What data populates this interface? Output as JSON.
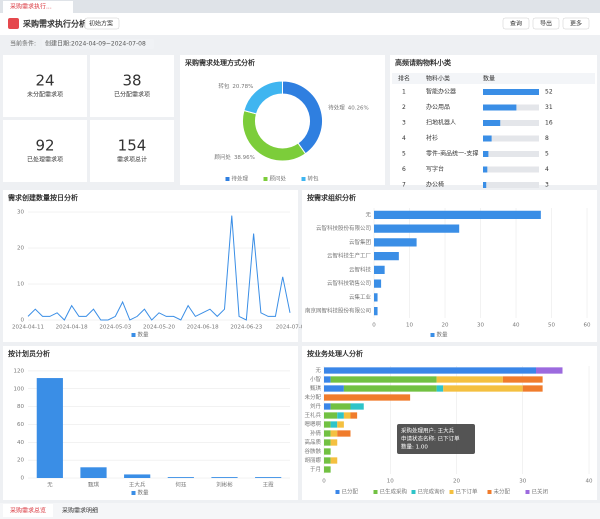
{
  "tab": "采购需求执行...",
  "header": {
    "title": "采购需求执行分析",
    "scheme": "初始方案",
    "buttons": [
      "查询",
      "导出",
      "更多"
    ]
  },
  "filter": {
    "label": "当前条件:",
    "tag": "创建日期:2024-04-09~2024-07-08"
  },
  "kpis": [
    {
      "value": 24,
      "label": "未分配需求项"
    },
    {
      "value": 38,
      "label": "已分配需求项"
    },
    {
      "value": 92,
      "label": "已处理需求项"
    },
    {
      "value": 154,
      "label": "需求项总计"
    }
  ],
  "table": {
    "title": "高频请购物料小类",
    "columns": [
      "排名",
      "物料小类",
      "数量"
    ],
    "rows": [
      [
        1,
        "智能办公器",
        52
      ],
      [
        2,
        "办公用品",
        31
      ],
      [
        3,
        "扫地机器人",
        16
      ],
      [
        4,
        "衬衫",
        8
      ],
      [
        5,
        "零件-商品统一-支撑",
        5
      ],
      [
        6,
        "写字台",
        4
      ],
      [
        7,
        "办公椅",
        3
      ]
    ]
  },
  "chart_data": [
    {
      "type": "pie",
      "title": "采购需求处理方式分析",
      "categories": [
        "待处理",
        "顾问处",
        "转包"
      ],
      "values": [
        40.26,
        38.96,
        20.78
      ],
      "value_labels": [
        "40.26%",
        "38.96%",
        "20.78%"
      ],
      "colors": [
        "#2f7fe0",
        "#7ccd3a",
        "#3fb5f0"
      ],
      "legend": "bottom"
    },
    {
      "type": "line",
      "title": "需求创建数量按日分析",
      "categories": [
        "2024-04-11",
        null,
        null,
        null,
        null,
        null,
        "2024-04-18",
        null,
        null,
        null,
        null,
        null,
        "2024-05-03",
        null,
        null,
        null,
        null,
        null,
        "2024-05-20",
        null,
        null,
        null,
        null,
        null,
        "2024-06-18",
        null,
        null,
        null,
        null,
        null,
        "2024-06-23",
        null,
        null,
        null,
        null,
        null,
        "2024-07-0"
      ],
      "series": [
        {
          "name": "数量",
          "color": "#3a8ee6",
          "values": [
            1,
            3,
            1,
            1,
            2,
            0,
            4,
            1,
            1,
            3,
            0,
            0,
            1,
            5,
            0,
            1,
            3,
            0,
            2,
            1,
            1,
            0,
            4,
            1,
            2,
            3,
            1,
            3,
            29,
            1,
            0,
            24,
            2,
            1,
            1,
            12,
            2
          ]
        }
      ],
      "ylim": [
        0,
        30
      ],
      "yticks": [
        0,
        10,
        20,
        30
      ],
      "grid": true
    },
    {
      "type": "hbar",
      "title": "按需求组织分析",
      "categories": [
        "无",
        "云智科技股份有限公司",
        "云智集团",
        "云智科技生产工厂",
        "云智科技",
        "云智科技销售公司",
        "云集工业",
        "南京网智科技股份有限公司"
      ],
      "series": [
        {
          "name": "数量",
          "color": "#3a8ee6",
          "values": [
            47,
            24,
            12,
            7,
            3,
            2,
            1,
            1
          ]
        }
      ],
      "xlim": [
        0,
        60
      ],
      "xticks": [
        0,
        10,
        20,
        30,
        40,
        50,
        60
      ],
      "grid": true
    },
    {
      "type": "bar",
      "title": "按计划员分析",
      "categories": [
        "无",
        "甄琪",
        "王大兵",
        "何珏",
        "刘彬彬",
        "王霞"
      ],
      "series": [
        {
          "name": "数量",
          "color": "#3a8ee6",
          "values": [
            112,
            12,
            4,
            1,
            1,
            1
          ]
        }
      ],
      "ylim": [
        0,
        130
      ],
      "yticks": [
        0,
        20,
        40,
        60,
        80,
        100,
        120
      ],
      "grid": true
    },
    {
      "type": "stacked-hbar",
      "title": "按业务处理人分析",
      "categories": [
        "无",
        "小智",
        "甄琪",
        "未分配",
        "刘丹",
        "王礼兵",
        "嗯嗯啊",
        "孙倩",
        "高品质",
        "谷骸骸",
        "胡丽娜",
        "于月"
      ],
      "series": [
        {
          "name": "已分配",
          "color": "#3a86e8",
          "values": [
            32,
            1,
            3,
            0,
            1,
            0,
            0,
            0,
            0,
            0,
            0,
            0
          ]
        },
        {
          "name": "已生成采购",
          "color": "#72c142",
          "values": [
            0,
            16,
            14,
            0,
            3,
            2,
            1,
            1,
            1,
            1,
            1,
            1
          ]
        },
        {
          "name": "已完成询价",
          "color": "#2ec4c9",
          "values": [
            0,
            0,
            1,
            0,
            2,
            1,
            1,
            0,
            0,
            0,
            0,
            0
          ]
        },
        {
          "name": "已下订单",
          "color": "#f4c040",
          "values": [
            0,
            10,
            12,
            0,
            0,
            1,
            1,
            1,
            1,
            0,
            1,
            0
          ]
        },
        {
          "name": "未分配",
          "color": "#f07c2c",
          "values": [
            0,
            6,
            3,
            13,
            0,
            1,
            0,
            2,
            0,
            0,
            0,
            0
          ]
        },
        {
          "name": "已关闭",
          "color": "#9c6ade",
          "values": [
            4,
            0,
            0,
            0,
            0,
            0,
            0,
            0,
            0,
            0,
            0,
            0
          ]
        }
      ],
      "xlim": [
        0,
        40
      ],
      "xticks": [
        0,
        10,
        20,
        30,
        40
      ],
      "grid": true,
      "tooltip": [
        "采购处理用户: 王大兵",
        "申请状态名称: 已下订单",
        "数量: 1.00"
      ]
    }
  ],
  "bottom_tabs": [
    "采购需求总览",
    "采购需求明细"
  ]
}
